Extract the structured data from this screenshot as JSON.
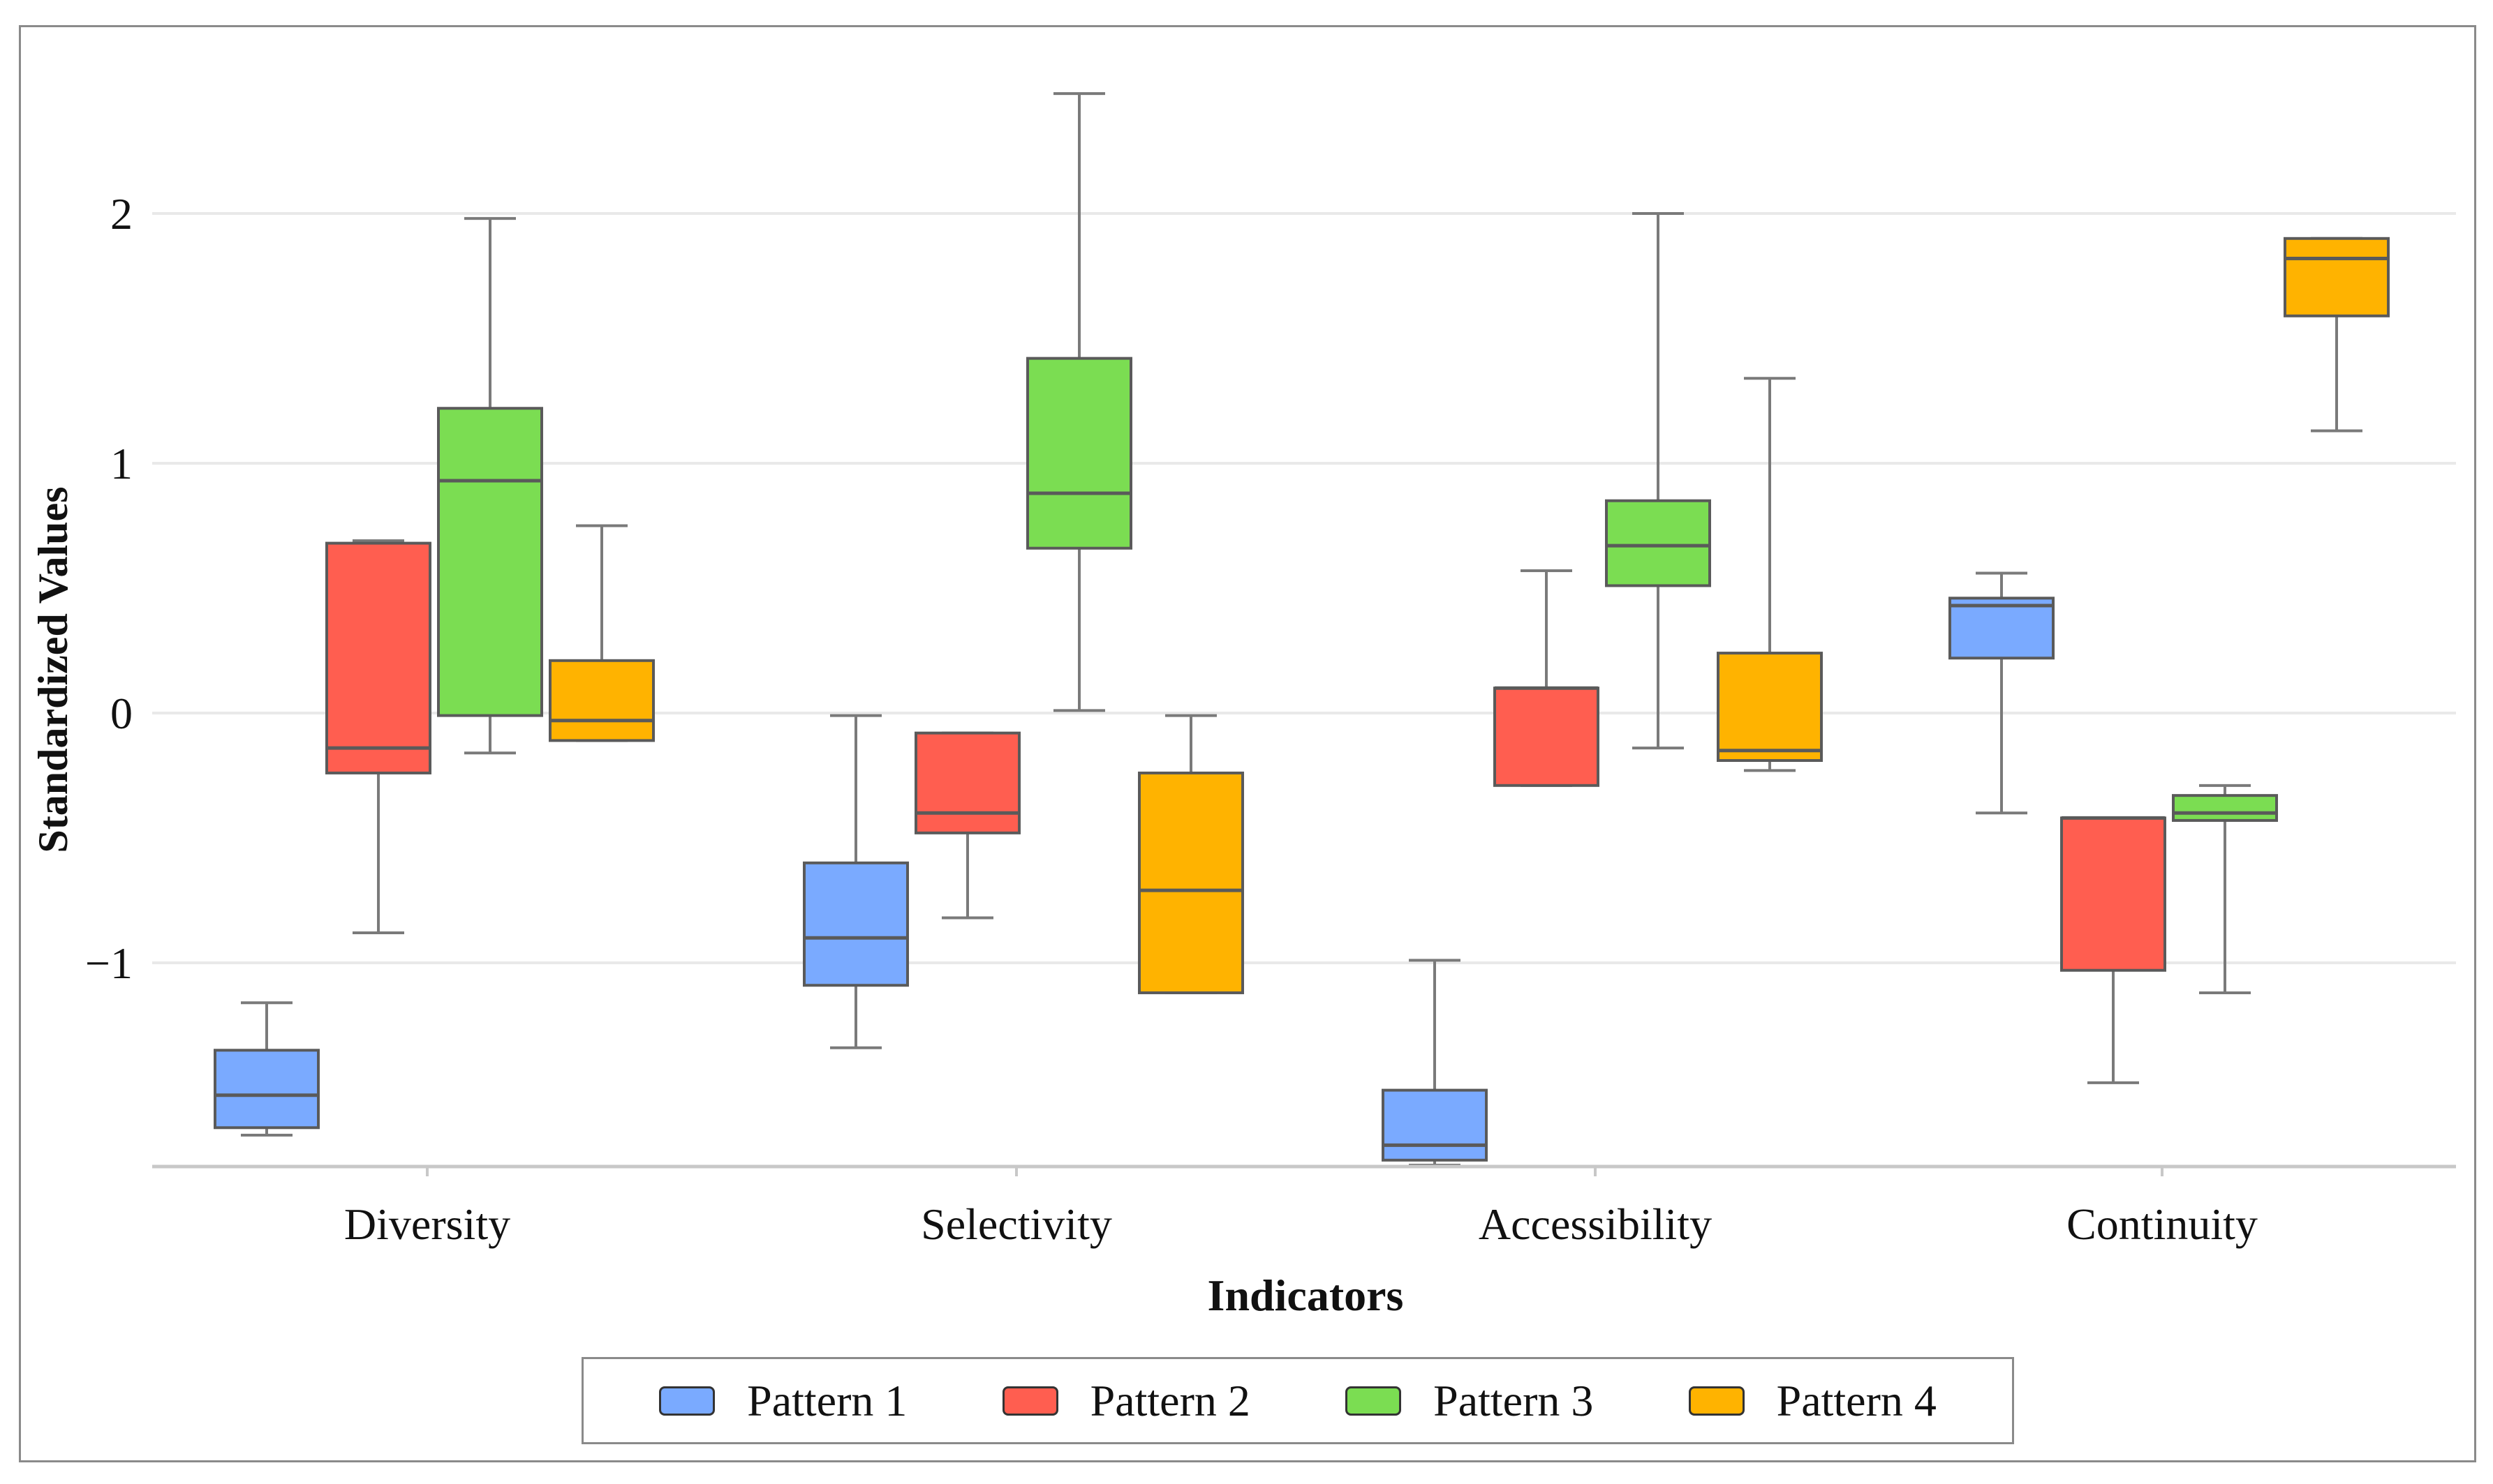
{
  "chart_data": {
    "type": "box",
    "title": "",
    "xlabel": "Indicators",
    "ylabel": "Standardized Values",
    "ylim": [
      -1.8,
      2.5
    ],
    "yticks": [
      2,
      1,
      0,
      -1
    ],
    "ytick_labels": [
      "2",
      "1",
      "0",
      "−1"
    ],
    "grid": true,
    "categories": [
      "Diversity",
      "Selectivity",
      "Accessibility",
      "Continuity"
    ],
    "legend_position": "bottom-center",
    "series": [
      {
        "name": "Pattern 1",
        "color": "#7aaaff",
        "boxes": [
          {
            "min": -1.69,
            "q1": -1.66,
            "median": -1.53,
            "q3": -1.35,
            "max": -1.16
          },
          {
            "min": -1.34,
            "q1": -1.09,
            "median": -0.9,
            "q3": -0.6,
            "max": -0.01
          },
          {
            "min": -1.81,
            "q1": -1.79,
            "median": -1.73,
            "q3": -1.51,
            "max": -0.99
          },
          {
            "min": -0.4,
            "q1": 0.22,
            "median": 0.43,
            "q3": 0.46,
            "max": 0.56
          }
        ]
      },
      {
        "name": "Pattern 2",
        "color": "#ff5e50",
        "boxes": [
          {
            "min": -0.88,
            "q1": -0.24,
            "median": -0.14,
            "q3": 0.68,
            "max": 0.69
          },
          {
            "min": -0.82,
            "q1": -0.48,
            "median": -0.4,
            "q3": -0.08,
            "max": -0.08
          },
          {
            "min": -0.29,
            "q1": -0.29,
            "median": 0.1,
            "q3": 0.1,
            "max": 0.57
          },
          {
            "min": -1.48,
            "q1": -1.03,
            "median": -0.42,
            "q3": -0.42,
            "max": -0.42
          }
        ]
      },
      {
        "name": "Pattern 3",
        "color": "#7bdd52",
        "boxes": [
          {
            "min": -0.16,
            "q1": -0.01,
            "median": 0.93,
            "q3": 1.22,
            "max": 1.98
          },
          {
            "min": 0.01,
            "q1": 0.66,
            "median": 0.88,
            "q3": 1.42,
            "max": 2.48
          },
          {
            "min": -0.14,
            "q1": 0.51,
            "median": 0.67,
            "q3": 0.85,
            "max": 2.0
          },
          {
            "min": -1.12,
            "q1": -0.43,
            "median": -0.4,
            "q3": -0.33,
            "max": -0.29
          }
        ]
      },
      {
        "name": "Pattern 4",
        "color": "#ffb300",
        "boxes": [
          {
            "min": -0.11,
            "q1": -0.11,
            "median": -0.03,
            "q3": 0.21,
            "max": 0.75
          },
          {
            "min": -1.12,
            "q1": -1.12,
            "median": -0.71,
            "q3": -0.24,
            "max": -0.01
          },
          {
            "min": -0.23,
            "q1": -0.19,
            "median": -0.15,
            "q3": 0.24,
            "max": 1.34
          },
          {
            "min": 1.13,
            "q1": 1.59,
            "median": 1.82,
            "q3": 1.9,
            "max": 1.9
          }
        ]
      }
    ]
  }
}
